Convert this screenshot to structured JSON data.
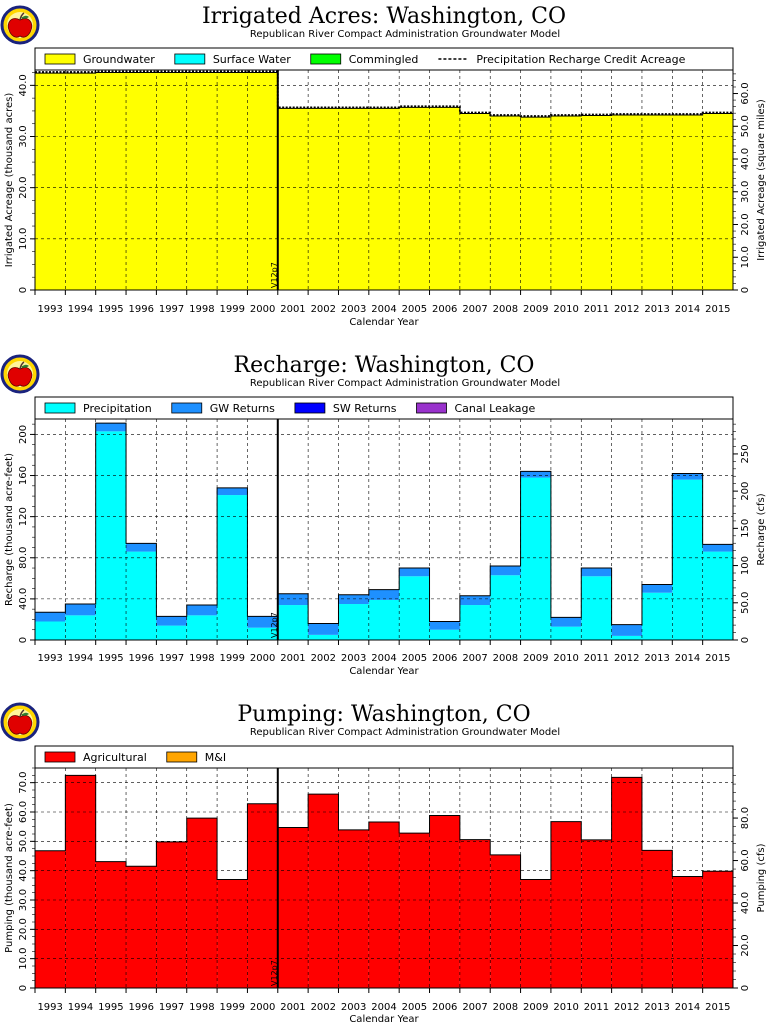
{
  "chart_data": [
    {
      "id": "irrigated",
      "type": "area",
      "title": "Irrigated Acres: Washington, CO",
      "subtitle": "Republican River Compact Administration Groundwater Model",
      "xlabel": "Calendar Year",
      "ylabel": "Irrigated Acreage (thousand acres)",
      "y2label": "Irrigated Acreage (square miles)",
      "ylim": [
        0,
        43
      ],
      "yticks": [
        0,
        10,
        20,
        30,
        40
      ],
      "ytick_labels": [
        "0",
        "10.0",
        "20.0",
        "30.0",
        "40.0"
      ],
      "y2_factor": 1.5625,
      "y2ticks": [
        0,
        10,
        20,
        30,
        40,
        50,
        60
      ],
      "y2tick_labels": [
        "0",
        "10.0",
        "20.0",
        "30.0",
        "40.0",
        "50.0",
        "60.0"
      ],
      "categories": [
        "1993",
        "1994",
        "1995",
        "1996",
        "1997",
        "1998",
        "1999",
        "2000",
        "2001",
        "2002",
        "2003",
        "2004",
        "2005",
        "2006",
        "2007",
        "2008",
        "2009",
        "2010",
        "2011",
        "2012",
        "2013",
        "2014",
        "2015"
      ],
      "series": [
        {
          "name": "Groundwater",
          "color": "#ffff00",
          "values": [
            42.4,
            42.4,
            42.5,
            42.5,
            42.5,
            42.5,
            42.5,
            42.5,
            35.5,
            35.5,
            35.5,
            35.5,
            35.7,
            35.7,
            34.5,
            34.0,
            33.8,
            34.0,
            34.1,
            34.2,
            34.2,
            34.2,
            34.5
          ]
        },
        {
          "name": "Surface Water",
          "color": "#00ffff",
          "values": [
            0,
            0,
            0,
            0,
            0,
            0,
            0,
            0,
            0,
            0,
            0,
            0,
            0,
            0,
            0,
            0,
            0,
            0,
            0,
            0,
            0,
            0,
            0
          ]
        },
        {
          "name": "Commingled",
          "color": "#00ff00",
          "values": [
            0,
            0,
            0,
            0,
            0,
            0,
            0,
            0,
            0,
            0,
            0,
            0,
            0,
            0,
            0,
            0,
            0,
            0,
            0,
            0,
            0,
            0,
            0
          ]
        }
      ],
      "line_series": {
        "name": "Precipitation Recharge Credit Acreage",
        "values": [
          42.6,
          42.6,
          42.7,
          42.7,
          42.7,
          42.7,
          42.7,
          42.7,
          35.7,
          35.7,
          35.7,
          35.7,
          35.9,
          35.9,
          34.7,
          34.2,
          34.0,
          34.2,
          34.3,
          34.4,
          34.4,
          34.4,
          34.7
        ]
      },
      "marker_label": "V12p7",
      "marker_after_index": 7,
      "grid": true,
      "legend_position": "top"
    },
    {
      "id": "recharge",
      "type": "area",
      "title": "Recharge: Washington, CO",
      "subtitle": "Republican River Compact Administration Groundwater Model",
      "xlabel": "Calendar Year",
      "ylabel": "Recharge (thousand acre-feet)",
      "y2label": "Recharge (cfs)",
      "ylim": [
        0,
        215
      ],
      "yticks": [
        0,
        40,
        80,
        120,
        160,
        200
      ],
      "ytick_labels": [
        "0",
        "40.0",
        "80.0",
        "120",
        "160",
        "200"
      ],
      "y2_factor": 1.381,
      "y2ticks": [
        0,
        50,
        100,
        150,
        200,
        250
      ],
      "y2tick_labels": [
        "0",
        "50.0",
        "100",
        "150",
        "200",
        "250"
      ],
      "categories": [
        "1993",
        "1994",
        "1995",
        "1996",
        "1997",
        "1998",
        "1999",
        "2000",
        "2001",
        "2002",
        "2003",
        "2004",
        "2005",
        "2006",
        "2007",
        "2008",
        "2009",
        "2010",
        "2011",
        "2012",
        "2013",
        "2014",
        "2015"
      ],
      "series": [
        {
          "name": "Precipitation",
          "color": "#00ffff",
          "values": [
            18,
            24,
            203,
            86,
            14,
            24,
            141,
            12,
            34,
            5,
            35,
            39,
            62,
            10,
            34,
            63,
            158,
            13,
            62,
            4,
            46,
            156,
            86
          ]
        },
        {
          "name": "GW Returns",
          "color": "#1e90ff",
          "values": [
            9,
            11,
            8,
            8,
            9,
            10,
            7,
            11,
            11,
            11,
            9,
            10,
            8,
            8,
            9,
            9,
            6,
            9,
            8,
            11,
            8,
            6,
            7
          ]
        },
        {
          "name": "SW Returns",
          "color": "#0000ff",
          "values": [
            0,
            0,
            0,
            0,
            0,
            0,
            0,
            0,
            0,
            0,
            0,
            0,
            0,
            0,
            0,
            0,
            0,
            0,
            0,
            0,
            0,
            0,
            0
          ]
        },
        {
          "name": "Canal Leakage",
          "color": "#9932cc",
          "values": [
            0,
            0,
            0,
            0,
            0,
            0,
            0,
            0,
            0,
            0,
            0,
            0,
            0,
            0,
            0,
            0,
            0,
            0,
            0,
            0,
            0,
            0,
            0
          ]
        }
      ],
      "marker_label": "V12p7",
      "marker_after_index": 7,
      "grid": true,
      "legend_position": "top"
    },
    {
      "id": "pumping",
      "type": "area",
      "title": "Pumping: Washington, CO",
      "subtitle": "Republican River Compact Administration Groundwater Model",
      "xlabel": "Calendar Year",
      "ylabel": "Pumping (thousand acre-feet)",
      "y2label": "Pumping (cfs)",
      "ylim": [
        0,
        75
      ],
      "yticks": [
        0,
        10,
        20,
        30,
        40,
        50,
        60,
        70
      ],
      "ytick_labels": [
        "0",
        "10.0",
        "20.0",
        "30.0",
        "40.0",
        "50.0",
        "60.0",
        "70.0"
      ],
      "y2_factor": 1.381,
      "y2ticks": [
        0,
        20,
        40,
        60,
        80
      ],
      "y2tick_labels": [
        "0",
        "20.0",
        "40.0",
        "60.0",
        "80.0"
      ],
      "categories": [
        "1993",
        "1994",
        "1995",
        "1996",
        "1997",
        "1998",
        "1999",
        "2000",
        "2001",
        "2002",
        "2003",
        "2004",
        "2005",
        "2006",
        "2007",
        "2008",
        "2009",
        "2010",
        "2011",
        "2012",
        "2013",
        "2014",
        "2015"
      ],
      "series": [
        {
          "name": "Agricultural",
          "color": "#ff0000",
          "values": [
            46.8,
            72.5,
            43.1,
            41.5,
            49.8,
            57.9,
            37.0,
            62.8,
            54.7,
            66.1,
            53.9,
            56.6,
            52.8,
            58.8,
            50.6,
            45.4,
            37.0,
            56.7,
            50.5,
            71.8,
            46.9,
            38.0,
            39.8
          ]
        },
        {
          "name": "M&I",
          "color": "#ffa500",
          "values": [
            0,
            0,
            0,
            0,
            0,
            0,
            0,
            0,
            0,
            0,
            0,
            0,
            0,
            0,
            0,
            0,
            0,
            0,
            0,
            0,
            0,
            0,
            0
          ]
        }
      ],
      "marker_label": "V12p7",
      "marker_after_index": 7,
      "grid": true,
      "legend_position": "top"
    }
  ],
  "logo": {
    "icon": "apple-logo-icon"
  }
}
